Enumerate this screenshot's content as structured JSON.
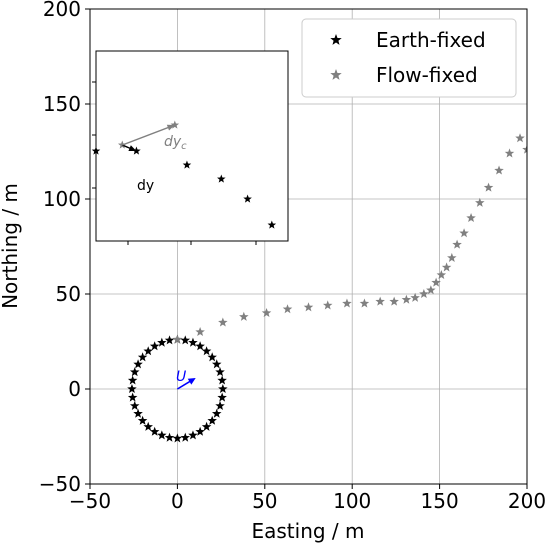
{
  "chart_data": {
    "type": "scatter",
    "xlabel": "Easting / m",
    "ylabel": "Northing / m",
    "xlim": [
      -50,
      200
    ],
    "ylim": [
      -50,
      200
    ],
    "x_ticks": [
      -50,
      0,
      50,
      100,
      150,
      200
    ],
    "y_ticks": [
      -50,
      0,
      50,
      100,
      150,
      200
    ],
    "x_tick_labels": [
      "−50",
      "0",
      "50",
      "100",
      "150",
      "200"
    ],
    "y_tick_labels": [
      "−50",
      "0",
      "50",
      "100",
      "150",
      "200"
    ],
    "grid": true,
    "legend_position": "top-right",
    "series": [
      {
        "name": "Earth-fixed",
        "color": "#000000",
        "marker": "star",
        "x": [
          0.0,
          4.5,
          8.9,
          13.0,
          16.7,
          19.9,
          22.5,
          24.4,
          25.6,
          26.0,
          25.6,
          24.4,
          22.5,
          19.9,
          16.7,
          13.0,
          8.9,
          4.5,
          0.0,
          -4.5,
          -8.9,
          -13.0,
          -16.7,
          -19.9,
          -22.5,
          -24.4,
          -25.6,
          -26.0,
          -25.6,
          -24.4,
          -22.5,
          -19.9,
          -16.7,
          -13.0,
          -8.9,
          -4.5
        ],
        "y": [
          26.0,
          25.6,
          24.4,
          22.5,
          19.9,
          16.7,
          13.0,
          8.9,
          4.5,
          0.0,
          -4.5,
          -8.9,
          -13.0,
          -16.7,
          -19.9,
          -22.5,
          -24.4,
          -25.6,
          -26.0,
          -25.6,
          -24.4,
          -22.5,
          -19.9,
          -16.7,
          -13.0,
          -8.9,
          -4.5,
          0.0,
          4.5,
          8.9,
          13.0,
          16.7,
          19.9,
          22.5,
          24.4,
          25.6
        ]
      },
      {
        "name": "Flow-fixed",
        "color": "#808080",
        "marker": "star",
        "x": [
          0,
          13,
          26,
          38,
          51,
          63,
          75,
          86,
          97,
          107,
          116,
          124,
          131,
          136,
          141,
          145,
          148,
          151,
          154,
          157,
          160,
          164,
          168,
          173,
          178,
          184,
          190,
          196,
          200
        ],
        "y": [
          26,
          30,
          35,
          38,
          40,
          42,
          43,
          44,
          45,
          45,
          46,
          46,
          47,
          48,
          50,
          52,
          56,
          60,
          64,
          69,
          76,
          82,
          90,
          98,
          106,
          115,
          124,
          132,
          126
        ]
      }
    ],
    "flow_arrow": {
      "label": "U",
      "color": "#0000ff",
      "dx": 9,
      "dy": 5
    },
    "inset": {
      "earth_fixed_points": [
        [
          -3.0,
          2.0
        ],
        [
          -1.0,
          2.0
        ],
        [
          1.5,
          1.3
        ],
        [
          3.2,
          0.6
        ],
        [
          4.5,
          -0.4
        ],
        [
          5.7,
          -1.7
        ]
      ],
      "flow_fixed_points": [
        [
          -1.7,
          2.3
        ],
        [
          0.9,
          3.3
        ]
      ],
      "vectors": [
        {
          "label": "dy",
          "color": "#000000",
          "from": [
            -1.7,
            2.3
          ],
          "to": [
            -1.0,
            2.0
          ]
        },
        {
          "label": "dy_c",
          "color": "#808080",
          "from": [
            -1.7,
            2.3
          ],
          "to": [
            0.9,
            3.3
          ]
        }
      ],
      "labels": {
        "dy": "dy",
        "dy_c_main": "dy",
        "dy_c_sub": "c"
      }
    }
  }
}
